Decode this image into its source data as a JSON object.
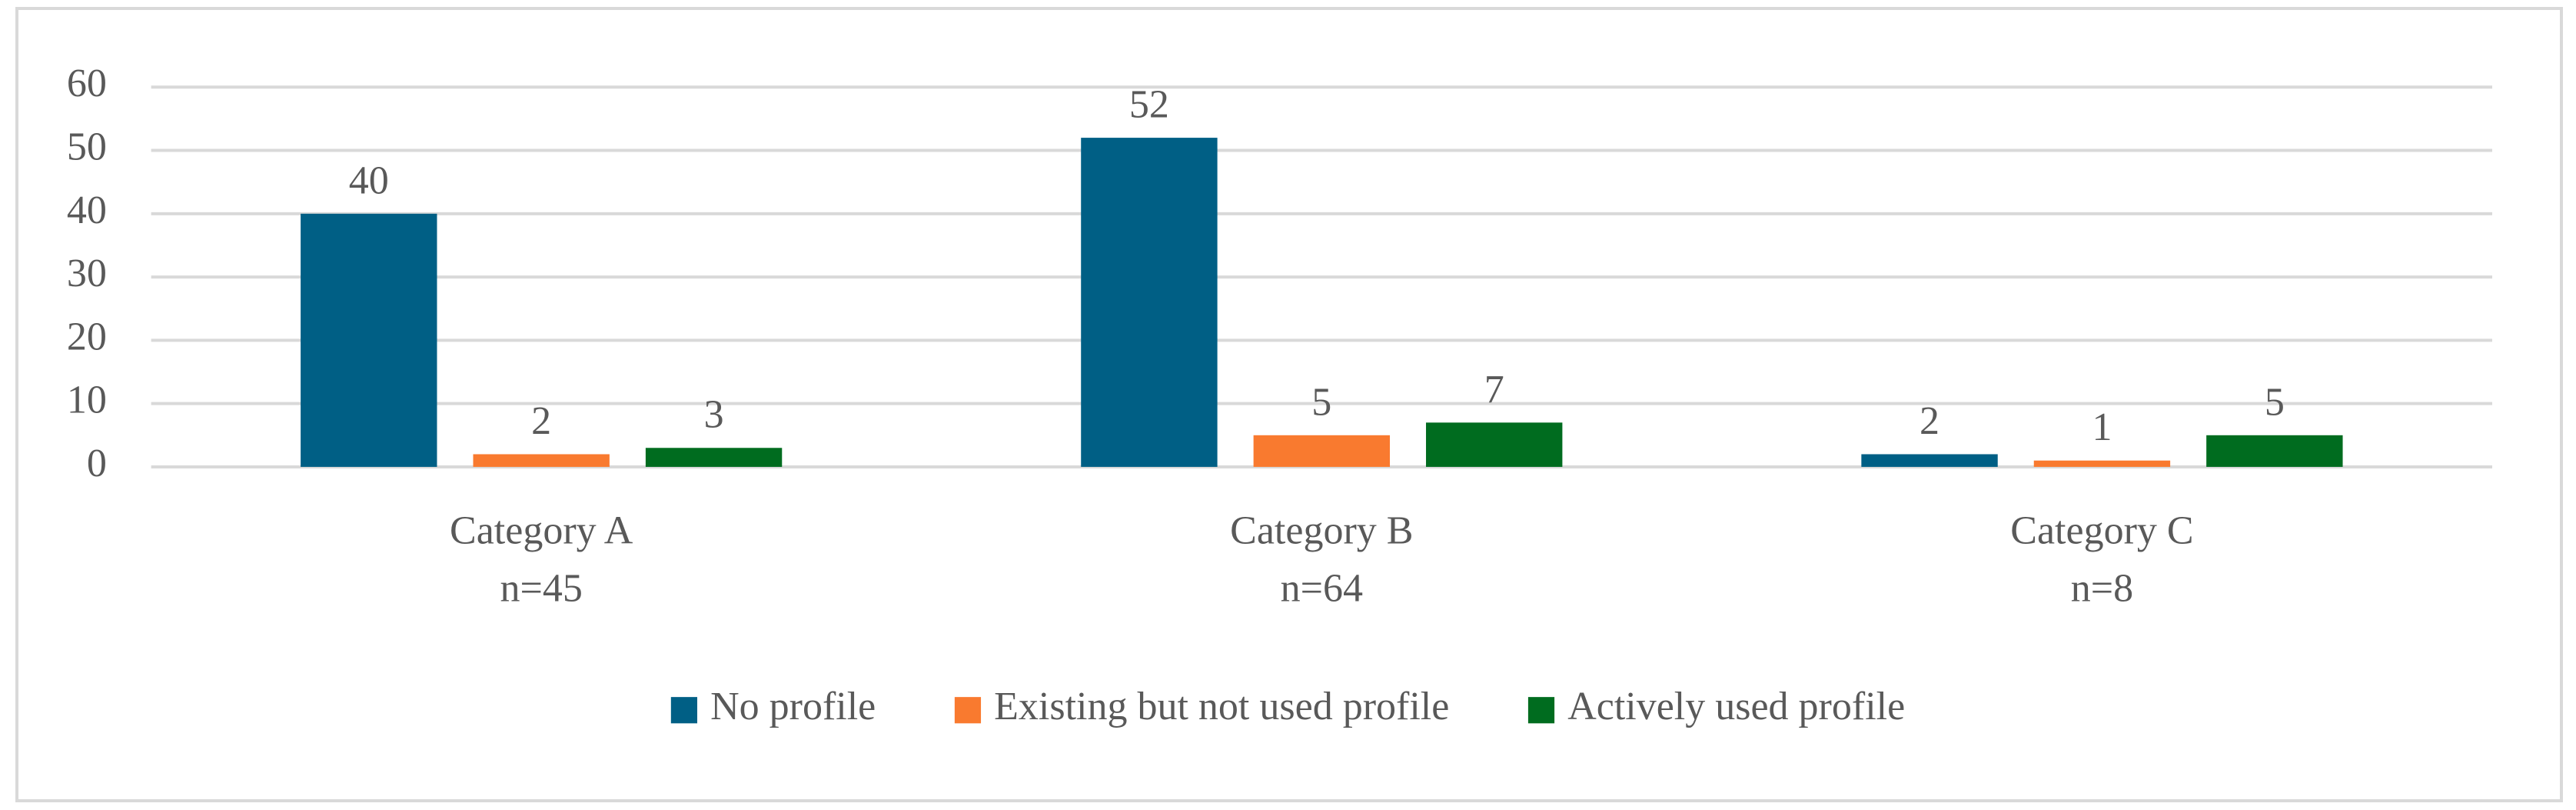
{
  "chart_data": {
    "type": "bar",
    "categories": [
      [
        "Category A",
        "n=45"
      ],
      [
        "Category B",
        "n=64"
      ],
      [
        "Category C",
        "n=8"
      ]
    ],
    "series": [
      {
        "name": "No profile",
        "color": "#005f85",
        "values": [
          40,
          52,
          2
        ]
      },
      {
        "name": "Existing but not used profile",
        "color": "#f97a2f",
        "values": [
          2,
          5,
          1
        ]
      },
      {
        "name": "Actively used profile",
        "color": "#006c1f",
        "values": [
          3,
          7,
          5
        ]
      }
    ],
    "ylim": [
      0,
      60
    ],
    "yticks": [
      0,
      10,
      20,
      30,
      40,
      50,
      60
    ],
    "grid": true,
    "legend": "bottom"
  }
}
